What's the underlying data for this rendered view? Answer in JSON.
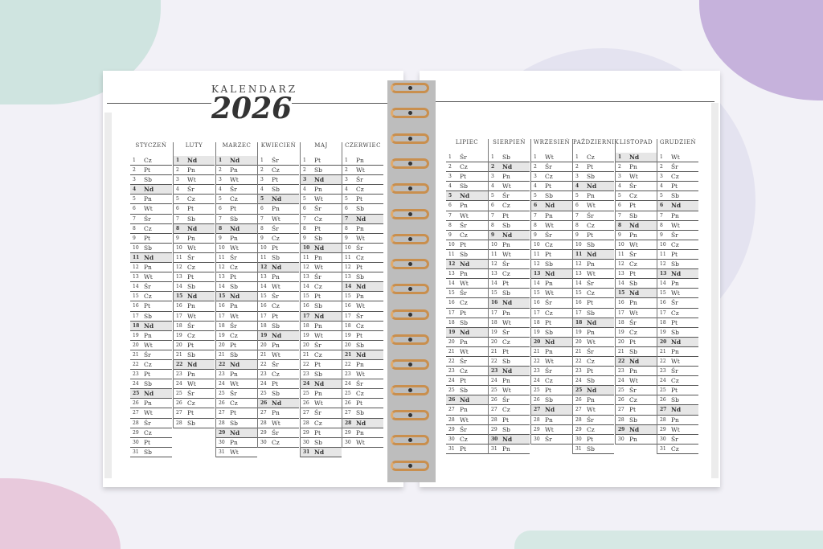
{
  "header": {
    "label": "KALENDARZ",
    "year": "2026"
  },
  "months": [
    {
      "name": "STYCZEŃ",
      "days": [
        "Cz",
        "Pt",
        "Sb",
        "Nd",
        "Pn",
        "Wt",
        "Śr",
        "Cz",
        "Pt",
        "Sb",
        "Nd",
        "Pn",
        "Wt",
        "Śr",
        "Cz",
        "Pt",
        "Sb",
        "Nd",
        "Pn",
        "Wt",
        "Śr",
        "Cz",
        "Pt",
        "Sb",
        "Nd",
        "Pn",
        "Wt",
        "Śr",
        "Cz",
        "Pt",
        "Sb"
      ]
    },
    {
      "name": "LUTY",
      "days": [
        "Nd",
        "Pn",
        "Wt",
        "Śr",
        "Cz",
        "Pt",
        "Sb",
        "Nd",
        "Pn",
        "Wt",
        "Śr",
        "Cz",
        "Pt",
        "Sb",
        "Nd",
        "Pn",
        "Wt",
        "Śr",
        "Cz",
        "Pt",
        "Sb",
        "Nd",
        "Pn",
        "Wt",
        "Śr",
        "Cz",
        "Pt",
        "Sb"
      ]
    },
    {
      "name": "MARZEC",
      "days": [
        "Nd",
        "Pn",
        "Wt",
        "Śr",
        "Cz",
        "Pt",
        "Sb",
        "Nd",
        "Pn",
        "Wt",
        "Śr",
        "Cz",
        "Pt",
        "Sb",
        "Nd",
        "Pn",
        "Wt",
        "Śr",
        "Cz",
        "Pt",
        "Sb",
        "Nd",
        "Pn",
        "Wt",
        "Śr",
        "Cz",
        "Pt",
        "Sb",
        "Nd",
        "Pn",
        "Wt"
      ]
    },
    {
      "name": "KWIECIEŃ",
      "days": [
        "Śr",
        "Cz",
        "Pt",
        "Sb",
        "Nd",
        "Pn",
        "Wt",
        "Śr",
        "Cz",
        "Pt",
        "Sb",
        "Nd",
        "Pn",
        "Wt",
        "Śr",
        "Cz",
        "Pt",
        "Sb",
        "Nd",
        "Pn",
        "Wt",
        "Śr",
        "Cz",
        "Pt",
        "Sb",
        "Nd",
        "Pn",
        "Wt",
        "Śr",
        "Cz"
      ]
    },
    {
      "name": "MAJ",
      "days": [
        "Pt",
        "Sb",
        "Nd",
        "Pn",
        "Wt",
        "Śr",
        "Cz",
        "Pt",
        "Sb",
        "Nd",
        "Pn",
        "Wt",
        "Śr",
        "Cz",
        "Pt",
        "Sb",
        "Nd",
        "Pn",
        "Wt",
        "Śr",
        "Cz",
        "Pt",
        "Sb",
        "Nd",
        "Pn",
        "Wt",
        "Śr",
        "Cz",
        "Pt",
        "Sb",
        "Nd"
      ]
    },
    {
      "name": "CZERWIEC",
      "days": [
        "Pn",
        "Wt",
        "Śr",
        "Cz",
        "Pt",
        "Sb",
        "Nd",
        "Pn",
        "Wt",
        "Śr",
        "Cz",
        "Pt",
        "Sb",
        "Nd",
        "Pn",
        "Wt",
        "Śr",
        "Cz",
        "Pt",
        "Sb",
        "Nd",
        "Pn",
        "Wt",
        "Śr",
        "Cz",
        "Pt",
        "Sb",
        "Nd",
        "Pn",
        "Wt"
      ]
    },
    {
      "name": "LIPIEC",
      "days": [
        "Śr",
        "Cz",
        "Pt",
        "Sb",
        "Nd",
        "Pn",
        "Wt",
        "Śr",
        "Cz",
        "Pt",
        "Sb",
        "Nd",
        "Pn",
        "Wt",
        "Śr",
        "Cz",
        "Pt",
        "Sb",
        "Nd",
        "Pn",
        "Wt",
        "Śr",
        "Cz",
        "Pt",
        "Sb",
        "Nd",
        "Pn",
        "Wt",
        "Śr",
        "Cz",
        "Pt"
      ]
    },
    {
      "name": "SIERPIEŃ",
      "days": [
        "Sb",
        "Nd",
        "Pn",
        "Wt",
        "Śr",
        "Cz",
        "Pt",
        "Sb",
        "Nd",
        "Pn",
        "Wt",
        "Śr",
        "Cz",
        "Pt",
        "Sb",
        "Nd",
        "Pn",
        "Wt",
        "Śr",
        "Cz",
        "Pt",
        "Sb",
        "Nd",
        "Pn",
        "Wt",
        "Śr",
        "Cz",
        "Pt",
        "Sb",
        "Nd",
        "Pn"
      ]
    },
    {
      "name": "WRZESIEŃ",
      "days": [
        "Wt",
        "Śr",
        "Cz",
        "Pt",
        "Sb",
        "Nd",
        "Pn",
        "Wt",
        "Śr",
        "Cz",
        "Pt",
        "Sb",
        "Nd",
        "Pn",
        "Wt",
        "Śr",
        "Cz",
        "Pt",
        "Sb",
        "Nd",
        "Pn",
        "Wt",
        "Śr",
        "Cz",
        "Pt",
        "Sb",
        "Nd",
        "Pn",
        "Wt",
        "Śr"
      ]
    },
    {
      "name": "PAŹDZIERNIK",
      "days": [
        "Cz",
        "Pt",
        "Sb",
        "Nd",
        "Pn",
        "Wt",
        "Śr",
        "Cz",
        "Pt",
        "Sb",
        "Nd",
        "Pn",
        "Wt",
        "Śr",
        "Cz",
        "Pt",
        "Sb",
        "Nd",
        "Pn",
        "Wt",
        "Śr",
        "Cz",
        "Pt",
        "Sb",
        "Nd",
        "Pn",
        "Wt",
        "Śr",
        "Cz",
        "Pt",
        "Sb"
      ]
    },
    {
      "name": "LISTOPAD",
      "days": [
        "Nd",
        "Pn",
        "Wt",
        "Śr",
        "Cz",
        "Pt",
        "Sb",
        "Nd",
        "Pn",
        "Wt",
        "Śr",
        "Cz",
        "Pt",
        "Sb",
        "Nd",
        "Pn",
        "Wt",
        "Śr",
        "Cz",
        "Pt",
        "Sb",
        "Nd",
        "Pn",
        "Wt",
        "Śr",
        "Cz",
        "Pt",
        "Sb",
        "Nd",
        "Pn"
      ]
    },
    {
      "name": "GRUDZIEŃ",
      "days": [
        "Wt",
        "Śr",
        "Cz",
        "Pt",
        "Sb",
        "Nd",
        "Pn",
        "Wt",
        "Śr",
        "Cz",
        "Pt",
        "Sb",
        "Nd",
        "Pn",
        "Wt",
        "Śr",
        "Cz",
        "Pt",
        "Sb",
        "Nd",
        "Pn",
        "Wt",
        "Śr",
        "Cz",
        "Pt",
        "Sb",
        "Nd",
        "Pn",
        "Wt",
        "Śr",
        "Cz"
      ]
    }
  ],
  "colors": {
    "background": "#f2f1f7",
    "sunday_highlight": "#e6e6e6",
    "ring": "#c98f4e"
  }
}
